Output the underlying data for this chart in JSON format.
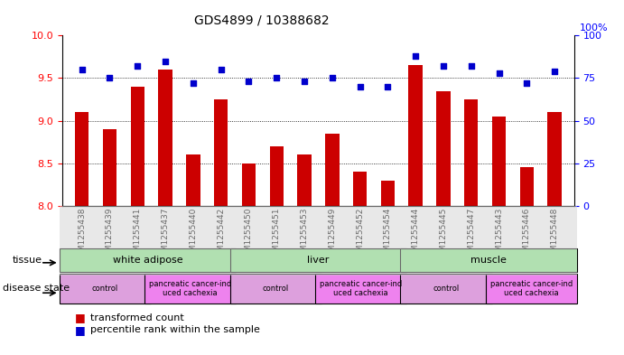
{
  "title": "GDS4899 / 10388682",
  "samples": [
    "GSM1255438",
    "GSM1255439",
    "GSM1255441",
    "GSM1255437",
    "GSM1255440",
    "GSM1255442",
    "GSM1255450",
    "GSM1255451",
    "GSM1255453",
    "GSM1255449",
    "GSM1255452",
    "GSM1255454",
    "GSM1255444",
    "GSM1255445",
    "GSM1255447",
    "GSM1255443",
    "GSM1255446",
    "GSM1255448"
  ],
  "transformed_count": [
    9.1,
    8.9,
    9.4,
    9.6,
    8.6,
    9.25,
    8.5,
    8.7,
    8.6,
    8.85,
    8.4,
    8.3,
    9.65,
    9.35,
    9.25,
    9.05,
    8.45,
    9.1
  ],
  "percentile_rank": [
    80,
    75,
    82,
    85,
    72,
    80,
    73,
    75,
    73,
    75,
    70,
    70,
    88,
    82,
    82,
    78,
    72,
    79
  ],
  "bar_color": "#cc0000",
  "dot_color": "#0000cc",
  "ylim_left": [
    8,
    10
  ],
  "ylim_right": [
    0,
    100
  ],
  "yticks_left": [
    8,
    8.5,
    9,
    9.5,
    10
  ],
  "yticks_right": [
    0,
    25,
    50,
    75,
    100
  ],
  "tissue_groups": [
    {
      "label": "white adipose",
      "start": 0,
      "end": 6,
      "color": "#90ee90"
    },
    {
      "label": "liver",
      "start": 6,
      "end": 12,
      "color": "#90ee90"
    },
    {
      "label": "muscle",
      "start": 12,
      "end": 18,
      "color": "#90ee90"
    }
  ],
  "disease_groups": [
    {
      "label": "control",
      "start": 0,
      "end": 3,
      "color": "#dda0dd"
    },
    {
      "label": "pancreatic cancer-ind\nuced cachexia",
      "start": 3,
      "end": 6,
      "color": "#ee82ee"
    },
    {
      "label": "control",
      "start": 6,
      "end": 9,
      "color": "#dda0dd"
    },
    {
      "label": "pancreatic cancer-ind\nuced cachexia",
      "start": 9,
      "end": 12,
      "color": "#ee82ee"
    },
    {
      "label": "control",
      "start": 12,
      "end": 15,
      "color": "#dda0dd"
    },
    {
      "label": "pancreatic cancer-ind\nuced cachexia",
      "start": 15,
      "end": 18,
      "color": "#ee82ee"
    }
  ],
  "legend_items": [
    {
      "label": "transformed count",
      "color": "#cc0000",
      "marker": "s"
    },
    {
      "label": "percentile rank within the sample",
      "color": "#0000cc",
      "marker": "s"
    }
  ],
  "background_color": "#ffffff",
  "grid_color": "#000000"
}
